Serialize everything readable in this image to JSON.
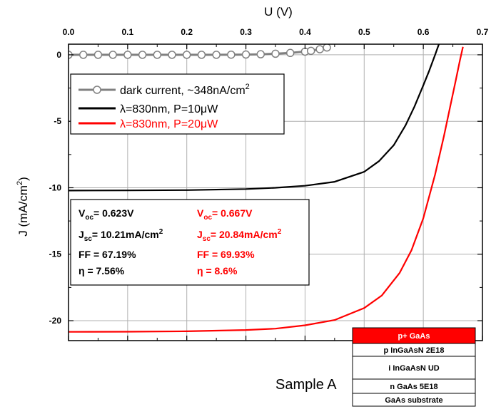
{
  "chart_data": {
    "type": "line",
    "title": "",
    "xlabel": "U (V)",
    "ylabel": "J (mA/cm²)",
    "xlim": [
      0.0,
      0.7
    ],
    "ylim": [
      -21.5,
      0.8
    ],
    "xticks": [
      "0.0",
      "0.1",
      "0.2",
      "0.3",
      "0.4",
      "0.5",
      "0.6",
      "0.7"
    ],
    "yticks": [
      "0",
      "-5",
      "-10",
      "-15",
      "-20"
    ],
    "grid": true,
    "legend_position": "top-left",
    "series": [
      {
        "name": "dark current, ~348nA/cm²",
        "color": "#808080",
        "marker": "open-circle",
        "x": [
          0.0,
          0.025,
          0.05,
          0.075,
          0.1,
          0.125,
          0.15,
          0.175,
          0.2,
          0.225,
          0.25,
          0.275,
          0.3,
          0.325,
          0.35,
          0.375,
          0.4,
          0.41,
          0.425,
          0.437
        ],
        "y": [
          0.0,
          0.0,
          0.0,
          0.0,
          0.0,
          0.0,
          0.0,
          0.0,
          0.0,
          0.0,
          0.0,
          0.01,
          0.02,
          0.04,
          0.08,
          0.14,
          0.24,
          0.3,
          0.42,
          0.55
        ]
      },
      {
        "name": "λ=830nm, P=10μW",
        "color": "#000000",
        "marker": "none",
        "x": [
          0.0,
          0.1,
          0.2,
          0.3,
          0.35,
          0.4,
          0.45,
          0.5,
          0.525,
          0.55,
          0.57,
          0.585,
          0.6,
          0.61,
          0.62,
          0.628
        ],
        "y": [
          -10.21,
          -10.2,
          -10.18,
          -10.1,
          -10.0,
          -9.85,
          -9.55,
          -8.8,
          -8.0,
          -6.8,
          -5.3,
          -3.9,
          -2.3,
          -1.2,
          0.0,
          1.0
        ]
      },
      {
        "name": "λ=830nm, P=20μW",
        "color": "#ff0000",
        "marker": "none",
        "x": [
          0.0,
          0.1,
          0.2,
          0.3,
          0.35,
          0.4,
          0.45,
          0.5,
          0.53,
          0.56,
          0.58,
          0.6,
          0.62,
          0.635,
          0.645,
          0.655,
          0.662,
          0.667
        ],
        "y": [
          -20.84,
          -20.83,
          -20.8,
          -20.7,
          -20.6,
          -20.35,
          -19.95,
          -19.05,
          -18.1,
          -16.4,
          -14.7,
          -12.3,
          -9.0,
          -6.1,
          -4.0,
          -1.9,
          -0.4,
          0.6
        ]
      }
    ],
    "annotations": {
      "stats_black": {
        "voc_label": "V",
        "voc_sub": "oc",
        "voc_value": "= 0.623V",
        "jsc_label": "J",
        "jsc_sub": "sc",
        "jsc_value": "= 10.21mA/cm",
        "jsc_sup": "2",
        "ff": "FF = 67.19%",
        "eta": "η = 7.56%"
      },
      "stats_red": {
        "voc_label": "V",
        "voc_sub": "oc",
        "voc_value": "= 0.667V",
        "jsc_label": "J",
        "jsc_sub": "sc",
        "jsc_value": "= 20.84mA/cm",
        "jsc_sup": "2",
        "ff": "FF = 69.93%",
        "eta": "η = 8.6%"
      },
      "sample_label": "Sample A",
      "layers": [
        {
          "label": "p+ GaAs",
          "fill": "#ff0000",
          "text_color": "#ffffff"
        },
        {
          "label": "p InGaAsN 2E18",
          "fill": "#ffffff",
          "text_color": "#000000"
        },
        {
          "label": "i InGaAsN UD",
          "fill": "#ffffff",
          "text_color": "#000000"
        },
        {
          "label": "n GaAs 5E18",
          "fill": "#ffffff",
          "text_color": "#000000"
        },
        {
          "label": "GaAs substrate",
          "fill": "#ffffff",
          "text_color": "#000000"
        }
      ]
    }
  }
}
